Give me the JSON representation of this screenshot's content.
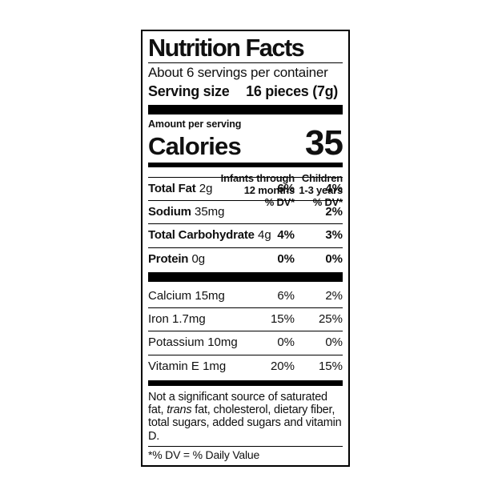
{
  "colors": {
    "text": "#101010",
    "background": "#ffffff",
    "rule": "#000000"
  },
  "label": {
    "title": "Nutrition Facts",
    "servings_per_container": "About 6 servings per container",
    "serving_size_label": "Serving size",
    "serving_size_value": "16 pieces (7g)",
    "amount_per_serving": "Amount per serving",
    "calories_label": "Calories",
    "calories_value": "35",
    "columns": {
      "infants_header": "Infants through\n12 months\n% DV*",
      "children_header": "Children\n1-3 years\n% DV*"
    },
    "nutrients": [
      {
        "name": "Total Fat",
        "amount": "2g",
        "infants_dv": "6%",
        "children_dv": "4%"
      },
      {
        "name": "Sodium",
        "amount": "35mg",
        "infants_dv": "",
        "children_dv": "2%"
      },
      {
        "name": "Total Carbohydrate",
        "amount": "4g",
        "infants_dv": "4%",
        "children_dv": "3%"
      },
      {
        "name": "Protein",
        "amount": "0g",
        "infants_dv": "0%",
        "children_dv": "0%"
      }
    ],
    "micronutrients": [
      {
        "name": "Calcium",
        "amount": "15mg",
        "infants_dv": "6%",
        "children_dv": "2%"
      },
      {
        "name": "Iron",
        "amount": "1.7mg",
        "infants_dv": "15%",
        "children_dv": "25%"
      },
      {
        "name": "Potassium",
        "amount": "10mg",
        "infants_dv": "0%",
        "children_dv": "0%"
      },
      {
        "name": "Vitamin E",
        "amount": "1mg",
        "infants_dv": "20%",
        "children_dv": "15%"
      }
    ],
    "footnote": {
      "part1": "Not a significant source of saturated fat, ",
      "italic_word": "trans",
      "part2": " fat, cholesterol, dietary fiber, total sugars, added sugars and vitamin D."
    },
    "dv_definition": "*% DV = % Daily Value"
  }
}
